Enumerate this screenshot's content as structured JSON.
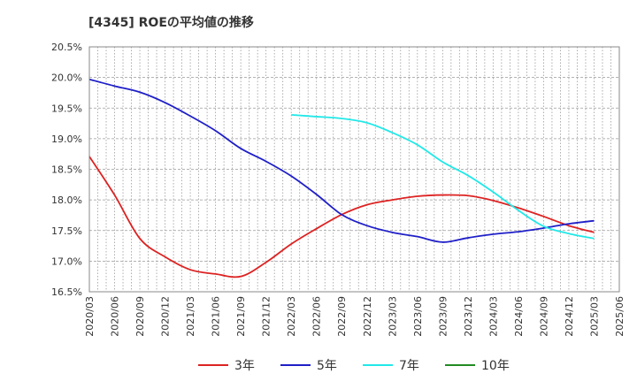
{
  "chart_data": {
    "type": "line",
    "title": "[4345]  ROEの平均値の推移",
    "xlabel": "",
    "ylabel": "",
    "ylim": [
      16.5,
      20.5
    ],
    "yticks": [
      20.5,
      20.0,
      19.5,
      19.0,
      18.5,
      18.0,
      17.5,
      17.0,
      16.5
    ],
    "ytick_labels": [
      "20.5%",
      "20.0%",
      "19.5%",
      "19.0%",
      "18.5%",
      "18.0%",
      "17.5%",
      "17.0%",
      "16.5%"
    ],
    "grid": true,
    "legend_position": "bottom",
    "categories": [
      "2020/03",
      "2020/06",
      "2020/09",
      "2020/12",
      "2021/03",
      "2021/06",
      "2021/09",
      "2021/12",
      "2022/03",
      "2022/06",
      "2022/09",
      "2022/12",
      "2023/03",
      "2023/06",
      "2023/09",
      "2023/12",
      "2024/03",
      "2024/06",
      "2024/09",
      "2024/12",
      "2025/03",
      "2025/06"
    ],
    "series": [
      {
        "name": "3年",
        "color": "#dd2222",
        "values": [
          18.71,
          18.08,
          17.37,
          17.07,
          16.86,
          16.79,
          16.75,
          16.98,
          17.28,
          17.53,
          17.76,
          17.92,
          18.0,
          18.06,
          18.08,
          18.07,
          17.99,
          17.87,
          17.73,
          17.58,
          17.47,
          null
        ]
      },
      {
        "name": "5年",
        "color": "#1f1fc8",
        "values": [
          19.97,
          19.86,
          19.76,
          19.59,
          19.37,
          19.13,
          18.84,
          18.63,
          18.39,
          18.09,
          17.76,
          17.58,
          17.47,
          17.4,
          17.31,
          17.38,
          17.44,
          17.48,
          17.54,
          17.61,
          17.66,
          null
        ]
      },
      {
        "name": "7年",
        "color": "#22e8e8",
        "values": [
          null,
          null,
          null,
          null,
          null,
          null,
          null,
          null,
          19.39,
          19.36,
          19.33,
          19.26,
          19.1,
          18.9,
          18.62,
          18.4,
          18.13,
          17.83,
          17.57,
          17.45,
          17.37,
          null
        ]
      },
      {
        "name": "10年",
        "color": "#228b22",
        "values": [
          null,
          null,
          null,
          null,
          null,
          null,
          null,
          null,
          null,
          null,
          null,
          null,
          null,
          null,
          null,
          null,
          null,
          null,
          null,
          null,
          null,
          null
        ]
      }
    ]
  }
}
